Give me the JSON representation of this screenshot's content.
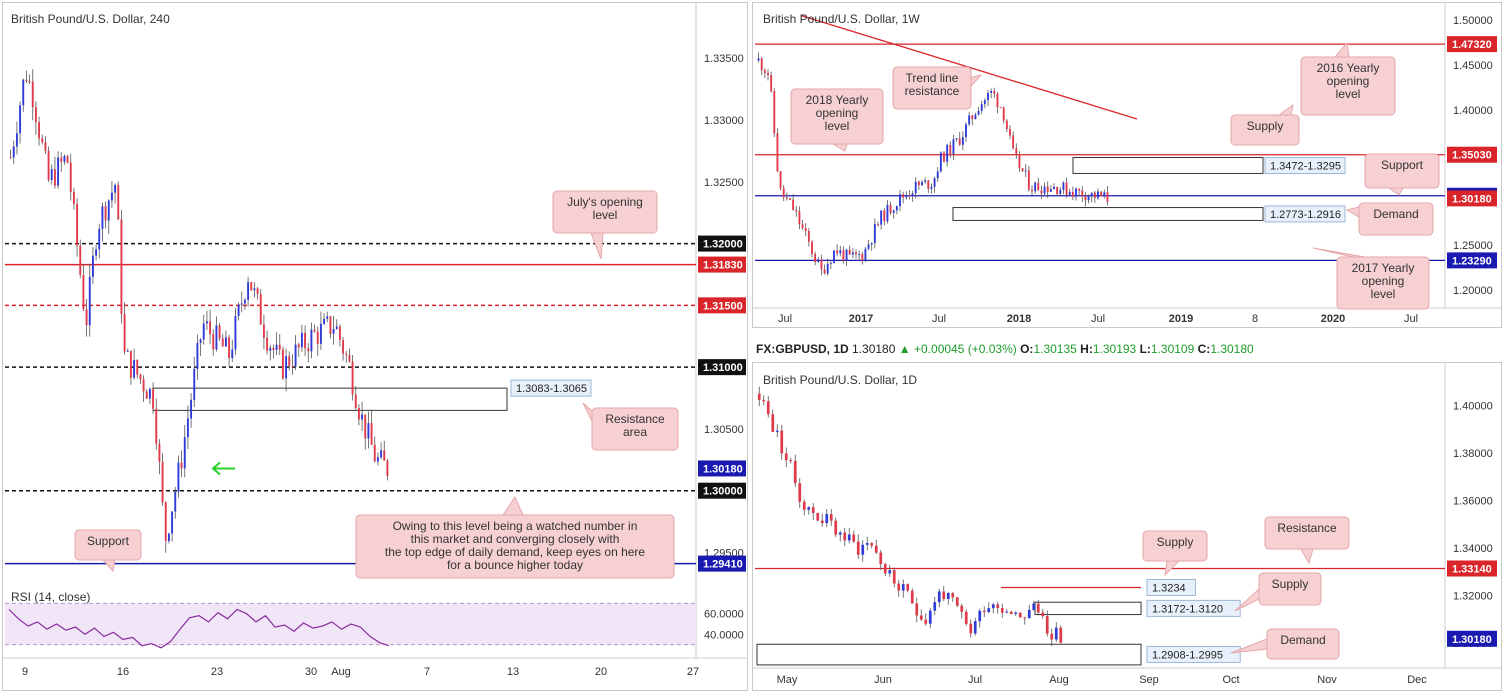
{
  "colors": {
    "bull": "#2f3bd8",
    "bear": "#e0394a",
    "red_line": "#d9242a",
    "blue_line": "#1a1ab0",
    "annotation_bg": "#f6d0d2",
    "annotation_border": "#e6a7ab",
    "rsi_line": "#8a2aa0",
    "rsi_band": "#f1e5f8"
  },
  "chart_data": [
    {
      "id": "h4",
      "type": "candlestick",
      "title": "British Pound/U.S. Dollar, 240",
      "ylim": [
        1.2935,
        1.3385
      ],
      "x_ticks": [
        "9",
        "16",
        "23",
        "30",
        "Aug",
        "7",
        "13",
        "20",
        "27"
      ],
      "y_ticks": [
        "1.33500",
        "1.33000",
        "1.32500",
        "1.30500",
        "1.29500"
      ],
      "badges": [
        {
          "value": 1.32,
          "label": "1.32000",
          "style": "black"
        },
        {
          "value": 1.3183,
          "label": "1.31830",
          "style": "red"
        },
        {
          "value": 1.315,
          "label": "1.31500",
          "style": "red"
        },
        {
          "value": 1.31,
          "label": "1.31000",
          "style": "black"
        },
        {
          "value": 1.3018,
          "label": "1.30180",
          "style": "blue"
        },
        {
          "value": 1.3,
          "label": "1.30000",
          "style": "black"
        },
        {
          "value": 1.2941,
          "label": "1.29410",
          "style": "blue"
        }
      ],
      "zones": [
        {
          "label": "1.3083-1.3065",
          "from": 1.3065,
          "to": 1.3083
        }
      ],
      "annotations": [
        {
          "text": "July's opening level"
        },
        {
          "text": "Resistance area"
        },
        {
          "text": "Support"
        },
        {
          "text": "Owing to this level being a watched number in this market and converging closely with the top edge of daily demand, keep eyes on here for a bounce higher today"
        }
      ],
      "rsi": {
        "label": "RSI (14, close)",
        "ticks": [
          "60.0000",
          "40.0000"
        ],
        "values": [
          64,
          55,
          48,
          52,
          45,
          50,
          44,
          47,
          40,
          46,
          38,
          42,
          35,
          37,
          29,
          31,
          27,
          33,
          45,
          56,
          58,
          52,
          61,
          55,
          64,
          60,
          52,
          58,
          47,
          49,
          43,
          51,
          46,
          48,
          52,
          45,
          50,
          47,
          38,
          32,
          29
        ]
      }
    },
    {
      "id": "w1",
      "type": "candlestick",
      "title": "British Pound/U.S. Dollar, 1W",
      "ylim": [
        1.18,
        1.51
      ],
      "x_ticks": [
        "Jul",
        "2017",
        "Jul",
        "2018",
        "Jul",
        "2019",
        "8",
        "2020",
        "Jul"
      ],
      "y_ticks": [
        "1.50000",
        "1.45000",
        "1.40000",
        "1.35000",
        "1.25000",
        "1.20000"
      ],
      "badges": [
        {
          "value": 1.4732,
          "label": "1.47320",
          "style": "red"
        },
        {
          "value": 1.3503,
          "label": "1.35030",
          "style": "red"
        },
        {
          "value": 1.3047,
          "label": "1.30470",
          "style": "blue"
        },
        {
          "value": 1.3018,
          "label": "1.30180",
          "style": "red"
        },
        {
          "value": 1.2329,
          "label": "1.23290",
          "style": "blue"
        }
      ],
      "zones": [
        {
          "label": "1.3472-1.3295",
          "from": 1.3295,
          "to": 1.3472
        },
        {
          "label": "1.2773-1.2916",
          "from": 1.2773,
          "to": 1.2916
        }
      ],
      "annotations": [
        {
          "text": "Trend line resistance"
        },
        {
          "text": "2018 Yearly opening level"
        },
        {
          "text": "2016 Yearly opening level"
        },
        {
          "text": "Supply"
        },
        {
          "text": "Support"
        },
        {
          "text": "Demand"
        },
        {
          "text": "2017 Yearly opening level"
        }
      ]
    },
    {
      "id": "d1",
      "type": "candlestick",
      "title": "British Pound/U.S. Dollar, 1D",
      "ylim": [
        1.2895,
        1.4095
      ],
      "x_ticks": [
        "May",
        "Jun",
        "Jul",
        "Aug",
        "Sep",
        "Oct",
        "Nov",
        "Dec"
      ],
      "y_ticks": [
        "1.40000",
        "1.38000",
        "1.36000",
        "1.34000",
        "1.32000",
        "1.30000"
      ],
      "badges": [
        {
          "value": 1.3314,
          "label": "1.33140",
          "style": "red"
        },
        {
          "value": 1.3018,
          "label": "1.30180",
          "style": "blue"
        }
      ],
      "zones": [
        {
          "label": "1.3234",
          "from": 1.3234,
          "to": 1.3234
        },
        {
          "label": "1.3172-1.3120",
          "from": 1.312,
          "to": 1.3172
        },
        {
          "label": "1.2908-1.2995",
          "from": 1.2908,
          "to": 1.2995
        }
      ],
      "annotations": [
        {
          "text": "Supply"
        },
        {
          "text": "Resistance"
        },
        {
          "text": "Supply"
        },
        {
          "text": "Demand"
        }
      ]
    }
  ],
  "infobar": {
    "symbol": "FX:GBPUSD, 1D",
    "price": "1.30180",
    "arrow": "▲",
    "change": "+0.00045 (+0.03%)",
    "o_label": "O:",
    "o": "1.30135",
    "h_label": "H:",
    "h": "1.30193",
    "l_label": "L:",
    "l": "1.30109",
    "c_label": "C:",
    "c": "1.30180"
  }
}
